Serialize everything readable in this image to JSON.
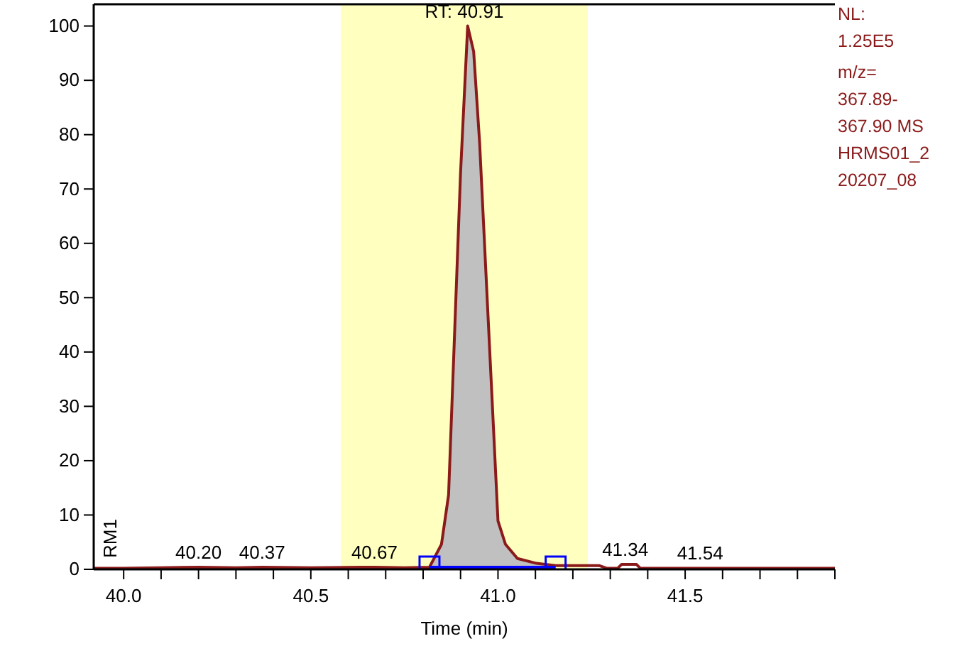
{
  "chart_data": {
    "type": "line",
    "xlabel": "Time (min)",
    "xlim": [
      39.92,
      41.9
    ],
    "xticks": [
      {
        "value": 40.0,
        "label": "40.0"
      },
      {
        "value": 40.1,
        "label": null
      },
      {
        "value": 40.2,
        "label": null
      },
      {
        "value": 40.3,
        "label": null
      },
      {
        "value": 40.4,
        "label": null
      },
      {
        "value": 40.5,
        "label": "40.5"
      },
      {
        "value": 40.6,
        "label": null
      },
      {
        "value": 40.7,
        "label": null
      },
      {
        "value": 40.8,
        "label": null
      },
      {
        "value": 40.9,
        "label": null
      },
      {
        "value": 41.0,
        "label": "41.0"
      },
      {
        "value": 41.1,
        "label": null
      },
      {
        "value": 41.2,
        "label": null
      },
      {
        "value": 41.3,
        "label": null
      },
      {
        "value": 41.4,
        "label": null
      },
      {
        "value": 41.5,
        "label": "41.5"
      },
      {
        "value": 41.6,
        "label": null
      },
      {
        "value": 41.7,
        "label": null
      },
      {
        "value": 41.8,
        "label": null
      },
      {
        "value": 41.9,
        "label": null
      }
    ],
    "ylim": [
      0,
      104
    ],
    "yticks": [
      0,
      10,
      20,
      30,
      40,
      50,
      60,
      70,
      80,
      90,
      100
    ],
    "grid": false,
    "marker": "none",
    "line_style": "solid",
    "bands": [
      {
        "axis": "x",
        "from": 40.58,
        "to": 41.24,
        "color": "#ffffc0"
      }
    ],
    "series": [
      {
        "type": "area",
        "color": "#c0c0c0",
        "x": [
          40.817,
          40.849,
          40.868,
          40.9,
          40.919,
          40.935,
          40.951,
          41.0,
          41.02,
          41.052,
          41.103,
          41.154
        ],
        "values": [
          0.4,
          4.6,
          13.7,
          73,
          100,
          95.3,
          78.4,
          8.9,
          4.6,
          2.0,
          1.1,
          0.7
        ]
      },
      {
        "color": "#8b1a1a",
        "x": [
          39.92,
          40.0,
          40.1,
          40.2,
          40.3,
          40.37,
          40.5,
          40.67,
          40.75,
          40.817,
          40.849,
          40.868,
          40.9,
          40.919,
          40.935,
          40.951,
          41.0,
          41.02,
          41.052,
          41.103,
          41.154,
          41.27,
          41.29,
          41.32,
          41.33,
          41.37,
          41.38,
          41.6,
          41.9
        ],
        "values": [
          0.2,
          0.2,
          0.3,
          0.4,
          0.3,
          0.4,
          0.3,
          0.4,
          0.3,
          0.4,
          4.6,
          13.7,
          73,
          100,
          95.3,
          78.4,
          8.9,
          4.6,
          2.0,
          1.1,
          0.7,
          0.7,
          0.2,
          0.2,
          0.9,
          0.9,
          0.2,
          0.2,
          0.2
        ]
      }
    ],
    "annotations": [
      {
        "text": "RT: 40.91",
        "x": 40.91,
        "y": 100
      },
      {
        "text": "40.20",
        "x": 40.2,
        "y": 0.4
      },
      {
        "text": "40.37",
        "x": 40.37,
        "y": 0.4
      },
      {
        "text": "40.67",
        "x": 40.67,
        "y": 0.4
      },
      {
        "text": "41.34",
        "x": 41.34,
        "y": 0.9
      },
      {
        "text": "41.54",
        "x": 41.54,
        "y": 0.2
      },
      "RM1",
      "NL: 1.25E5",
      "m/z= 367.89-367.90 MS HRMS01_220207_08"
    ]
  }
}
